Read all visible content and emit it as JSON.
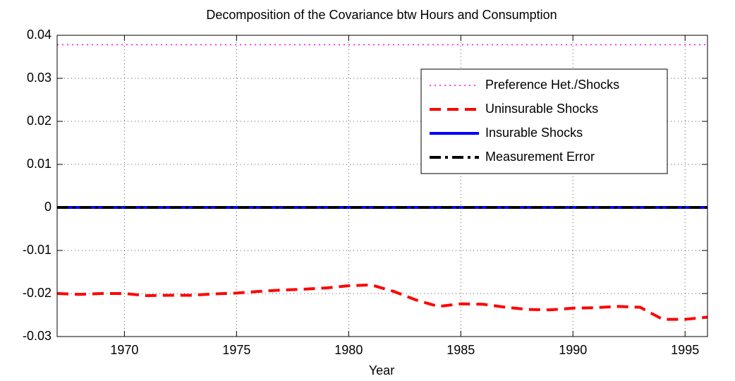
{
  "chart_data": {
    "type": "line",
    "title": "Decomposition of the Covariance btw Hours and Consumption",
    "x_label": "Year",
    "x": [
      1967,
      1968,
      1969,
      1970,
      1971,
      1972,
      1973,
      1974,
      1975,
      1976,
      1977,
      1978,
      1979,
      1980,
      1981,
      1982,
      1983,
      1984,
      1985,
      1986,
      1987,
      1988,
      1989,
      1990,
      1991,
      1992,
      1993,
      1994,
      1995,
      1996
    ],
    "xlim": [
      1967,
      1996
    ],
    "xticks": [
      1970,
      1975,
      1980,
      1985,
      1990,
      1995
    ],
    "ylim": [
      -0.03,
      0.04
    ],
    "yticks": [
      -0.03,
      -0.02,
      -0.01,
      0,
      0.01,
      0.02,
      0.03,
      0.04
    ],
    "grid": true,
    "legend_position": "upper right",
    "series": [
      {
        "name": "Preference Het./Shocks",
        "color": "#ff00ff",
        "linestyle": "dotted",
        "values": [
          0.0378,
          0.0378,
          0.0378,
          0.0378,
          0.0378,
          0.0378,
          0.0378,
          0.0378,
          0.0378,
          0.0378,
          0.0378,
          0.0378,
          0.0378,
          0.0378,
          0.0378,
          0.0378,
          0.0378,
          0.0378,
          0.0378,
          0.0378,
          0.0378,
          0.0378,
          0.0378,
          0.0378,
          0.0378,
          0.0378,
          0.0378,
          0.0378,
          0.0378,
          0.0378
        ]
      },
      {
        "name": "Uninsurable Shocks",
        "color": "#ff0000",
        "linestyle": "dashed",
        "values": [
          -0.02,
          -0.0202,
          -0.02,
          -0.02,
          -0.0205,
          -0.0204,
          -0.0204,
          -0.0201,
          -0.0199,
          -0.0195,
          -0.0192,
          -0.019,
          -0.0187,
          -0.0182,
          -0.018,
          -0.0195,
          -0.0215,
          -0.023,
          -0.0224,
          -0.0225,
          -0.0232,
          -0.0237,
          -0.0238,
          -0.0234,
          -0.0233,
          -0.023,
          -0.0232,
          -0.026,
          -0.026,
          -0.0255
        ]
      },
      {
        "name": "Insurable Shocks",
        "color": "#0000ff",
        "linestyle": "solid",
        "values": [
          0,
          0,
          0,
          0,
          0,
          0,
          0,
          0,
          0,
          0,
          0,
          0,
          0,
          0,
          0,
          0,
          0,
          0,
          0,
          0,
          0,
          0,
          0,
          0,
          0,
          0,
          0,
          0,
          0,
          0
        ]
      },
      {
        "name": "Measurement Error",
        "color": "#000000",
        "linestyle": "dashdot",
        "values": [
          0,
          0,
          0,
          0,
          0,
          0,
          0,
          0,
          0,
          0,
          0,
          0,
          0,
          0,
          0,
          0,
          0,
          0,
          0,
          0,
          0,
          0,
          0,
          0,
          0,
          0,
          0,
          0,
          0,
          0
        ]
      }
    ]
  }
}
